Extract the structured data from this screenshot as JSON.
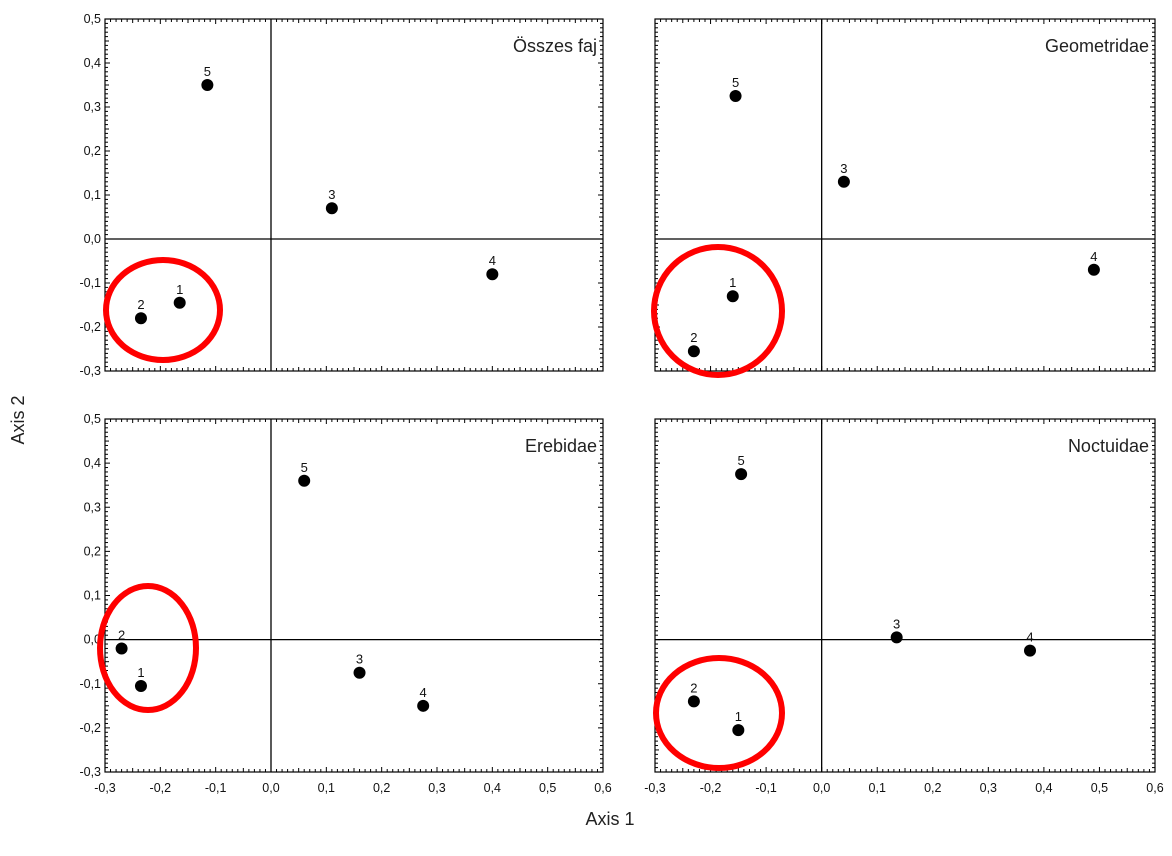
{
  "figure": {
    "xlabel": "Axis 1",
    "ylabel": "Axis 2"
  },
  "colors": {
    "points": "#000000",
    "axes": "#000000",
    "highlight_circle": "#ff0000"
  },
  "chart_data": [
    {
      "type": "scatter",
      "title": "Összes faj",
      "xlim": [
        -0.3,
        0.6
      ],
      "ylim": [
        -0.3,
        0.5
      ],
      "xticks": [
        "-0,3",
        "-0,2",
        "-0,1",
        "0,0",
        "0,1",
        "0,2",
        "0,3",
        "0,4",
        "0,5",
        "0,6"
      ],
      "yticks": [
        "-0,3",
        "-0,2",
        "-0,1",
        "0,0",
        "0,1",
        "0,2",
        "0,3",
        "0,4",
        "0,5"
      ],
      "show_xticks": false,
      "show_yticks": true,
      "points": [
        {
          "label": "1",
          "x": -0.165,
          "y": -0.145
        },
        {
          "label": "2",
          "x": -0.235,
          "y": -0.18
        },
        {
          "label": "3",
          "x": 0.11,
          "y": 0.07
        },
        {
          "label": "4",
          "x": 0.4,
          "y": -0.08
        },
        {
          "label": "5",
          "x": -0.115,
          "y": 0.35
        }
      ],
      "highlight": {
        "note": "red ellipse around points 1 and 2"
      }
    },
    {
      "type": "scatter",
      "title": "Geometridae",
      "xlim": [
        -0.3,
        0.6
      ],
      "ylim": [
        -0.3,
        0.5
      ],
      "xticks": [
        "-0,3",
        "-0,2",
        "-0,1",
        "0,0",
        "0,1",
        "0,2",
        "0,3",
        "0,4",
        "0,5",
        "0,6"
      ],
      "yticks": [
        "-0,3",
        "-0,2",
        "-0,1",
        "0,0",
        "0,1",
        "0,2",
        "0,3",
        "0,4",
        "0,5"
      ],
      "show_xticks": false,
      "show_yticks": false,
      "points": [
        {
          "label": "1",
          "x": -0.16,
          "y": -0.13
        },
        {
          "label": "2",
          "x": -0.23,
          "y": -0.255
        },
        {
          "label": "3",
          "x": 0.04,
          "y": 0.13
        },
        {
          "label": "4",
          "x": 0.49,
          "y": -0.07
        },
        {
          "label": "5",
          "x": -0.155,
          "y": 0.325
        }
      ],
      "highlight": {
        "note": "red ellipse around points 1 and 2"
      }
    },
    {
      "type": "scatter",
      "title": "Erebidae",
      "xlim": [
        -0.3,
        0.6
      ],
      "ylim": [
        -0.3,
        0.5
      ],
      "xticks": [
        "-0,3",
        "-0,2",
        "-0,1",
        "0,0",
        "0,1",
        "0,2",
        "0,3",
        "0,4",
        "0,5",
        "0,6"
      ],
      "yticks": [
        "-0,3",
        "-0,2",
        "-0,1",
        "0,0",
        "0,1",
        "0,2",
        "0,3",
        "0,4",
        "0,5"
      ],
      "show_xticks": true,
      "show_yticks": true,
      "points": [
        {
          "label": "1",
          "x": -0.235,
          "y": -0.105
        },
        {
          "label": "2",
          "x": -0.27,
          "y": -0.02
        },
        {
          "label": "3",
          "x": 0.16,
          "y": -0.075
        },
        {
          "label": "4",
          "x": 0.275,
          "y": -0.15
        },
        {
          "label": "5",
          "x": 0.06,
          "y": 0.36
        }
      ],
      "highlight": {
        "note": "red ellipse around points 1 and 2"
      }
    },
    {
      "type": "scatter",
      "title": "Noctuidae",
      "xlim": [
        -0.3,
        0.6
      ],
      "ylim": [
        -0.3,
        0.5
      ],
      "xticks": [
        "-0,3",
        "-0,2",
        "-0,1",
        "0,0",
        "0,1",
        "0,2",
        "0,3",
        "0,4",
        "0,5",
        "0,6"
      ],
      "yticks": [
        "-0,3",
        "-0,2",
        "-0,1",
        "0,0",
        "0,1",
        "0,2",
        "0,3",
        "0,4",
        "0,5"
      ],
      "show_xticks": true,
      "show_yticks": false,
      "points": [
        {
          "label": "1",
          "x": -0.15,
          "y": -0.205
        },
        {
          "label": "2",
          "x": -0.23,
          "y": -0.14
        },
        {
          "label": "3",
          "x": 0.135,
          "y": 0.005
        },
        {
          "label": "4",
          "x": 0.375,
          "y": -0.025
        },
        {
          "label": "5",
          "x": -0.145,
          "y": 0.375
        }
      ],
      "highlight": {
        "note": "red ellipse around points 1 and 2"
      }
    }
  ]
}
